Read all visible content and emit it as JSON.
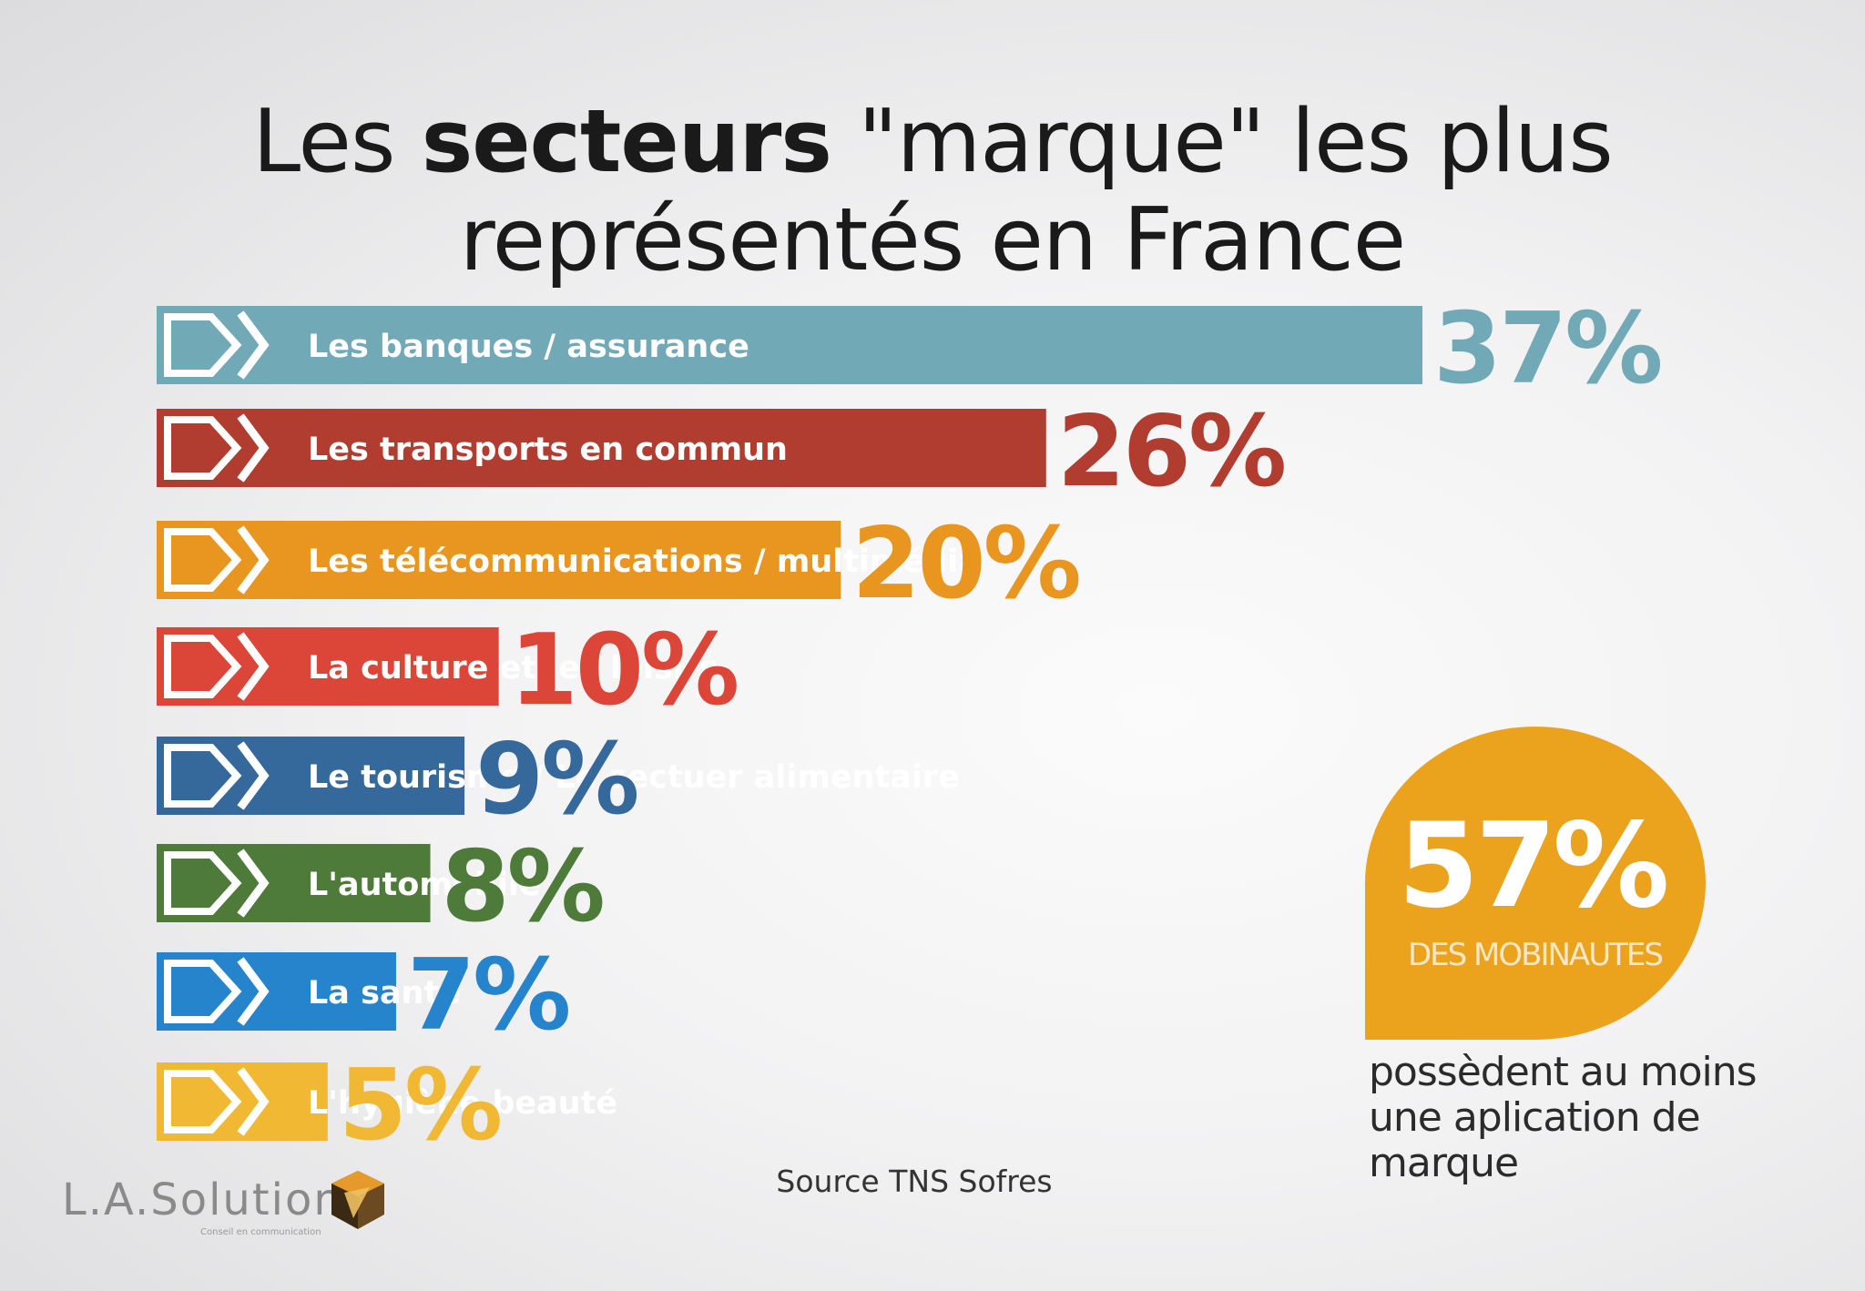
{
  "header": {
    "title_prefix": "Les ",
    "title_bold": "secteurs",
    "title_line1_suffix": " \"marque\" les plus",
    "title_line2": "représentés en France"
  },
  "chart_data": {
    "type": "bar",
    "orientation": "horizontal",
    "title": "Les secteurs \"marque\" les plus représentés en France",
    "categories": [
      "Les banques / assurance",
      "Les transports en commun",
      "Les télécommunications / multimédia",
      "La culture et les loisirs",
      "Le tourisme / Le sectuer alimentaire",
      "L'automobile",
      "La santé",
      "L'hygiène beauté"
    ],
    "values": [
      37,
      26,
      20,
      10,
      9,
      8,
      7,
      5
    ],
    "labels": [
      "37%",
      "26%",
      "20%",
      "10%",
      "9%",
      "8%",
      "7%",
      "5%"
    ],
    "colors": [
      "#72a9b6",
      "#b13d30",
      "#e8961f",
      "#db4638",
      "#36699b",
      "#4e7b3a",
      "#2684cd",
      "#f0b833"
    ],
    "unit": "%"
  },
  "source": "Source TNS Sofres",
  "highlight": {
    "value": "57%",
    "label": "DES MOBINAUTES",
    "note": "possèdent au moins une aplication de marque",
    "color": "#eba31e"
  },
  "logo": {
    "name": "L.A.Solution",
    "tagline": "Conseil en communication"
  }
}
